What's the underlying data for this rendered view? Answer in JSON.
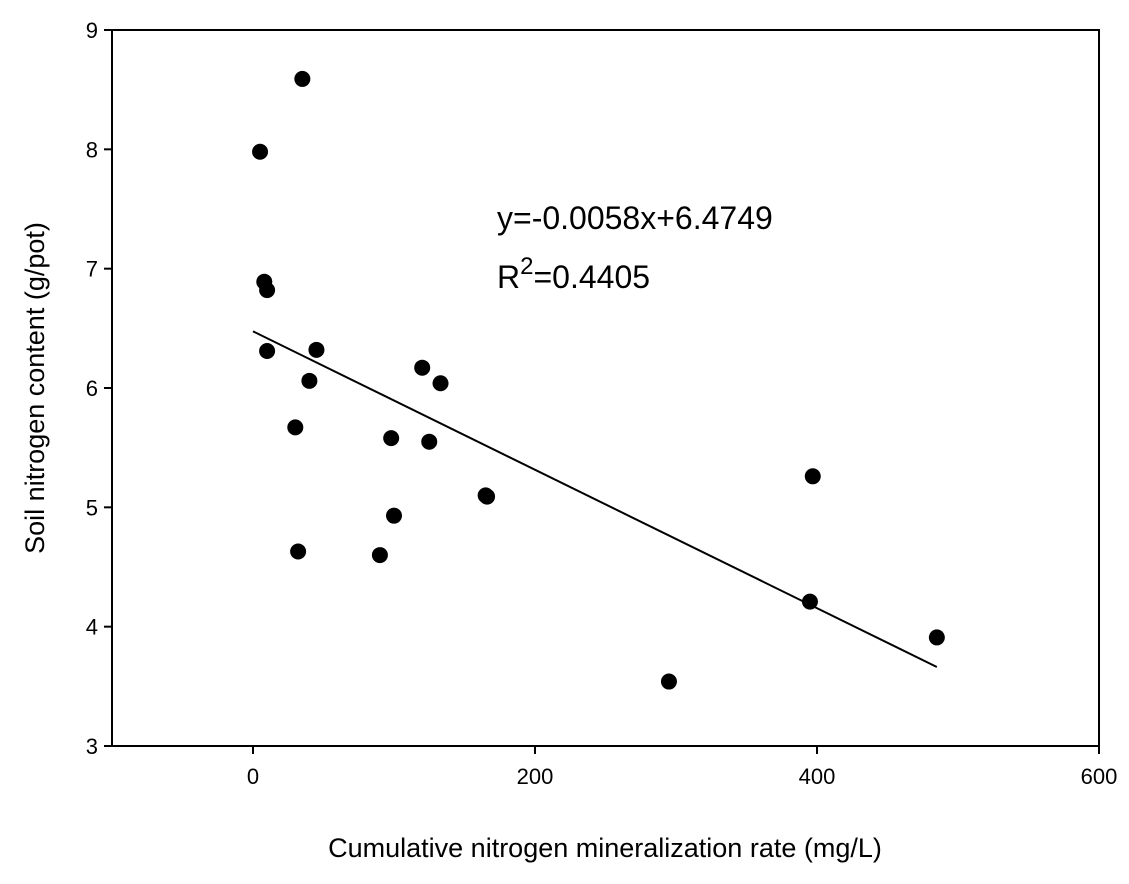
{
  "chart_data": {
    "type": "scatter",
    "xlabel": "Cumulative nitrogen mineralization rate (mg/L)",
    "ylabel": "Soil nitrogen content (g/pot)",
    "xlim": [
      -100,
      600
    ],
    "ylim": [
      3,
      9
    ],
    "xticks": [
      0,
      200,
      400,
      600
    ],
    "yticks": [
      3,
      4,
      5,
      6,
      7,
      8,
      9
    ],
    "grid": false,
    "series": [
      {
        "points": [
          {
            "x": 5,
            "y": 7.98
          },
          {
            "x": 35,
            "y": 8.59
          },
          {
            "x": 8,
            "y": 6.89
          },
          {
            "x": 10,
            "y": 6.82
          },
          {
            "x": 10,
            "y": 6.31
          },
          {
            "x": 45,
            "y": 6.32
          },
          {
            "x": 40,
            "y": 6.06
          },
          {
            "x": 30,
            "y": 5.67
          },
          {
            "x": 32,
            "y": 4.63
          },
          {
            "x": 98,
            "y": 5.58
          },
          {
            "x": 100,
            "y": 4.93
          },
          {
            "x": 90,
            "y": 4.6
          },
          {
            "x": 120,
            "y": 6.17
          },
          {
            "x": 133,
            "y": 6.04
          },
          {
            "x": 125,
            "y": 5.55
          },
          {
            "x": 165,
            "y": 5.1
          },
          {
            "x": 166,
            "y": 5.09
          },
          {
            "x": 295,
            "y": 3.54
          },
          {
            "x": 397,
            "y": 5.26
          },
          {
            "x": 395,
            "y": 4.21
          },
          {
            "x": 485,
            "y": 3.91
          }
        ]
      }
    ],
    "trendline": {
      "type": "linear",
      "slope": -0.0058,
      "intercept": 6.4749,
      "x_range": [
        0,
        485
      ]
    },
    "annotation": {
      "equation": "y=-0.0058x+6.4749",
      "r2_prefix": "R",
      "r2_sup": "2",
      "r2_value": "=0.4405"
    }
  }
}
